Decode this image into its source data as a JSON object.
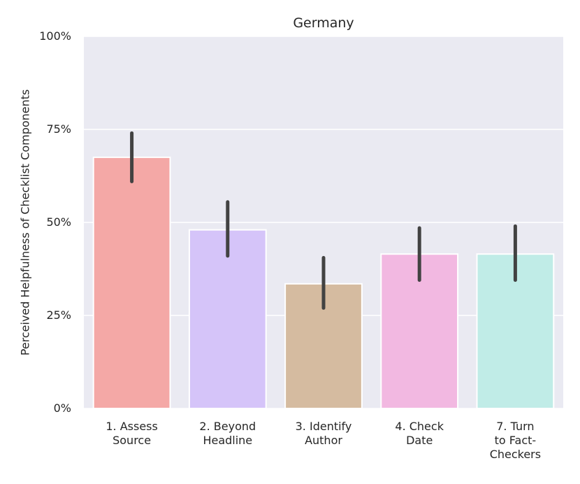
{
  "chart_data": {
    "type": "bar",
    "title": "Germany",
    "xlabel": "",
    "ylabel": "Perceived Helpfulness of Checklist Components",
    "ylim": [
      0,
      100
    ],
    "yticks": [
      "0%",
      "25%",
      "50%",
      "75%",
      "100%"
    ],
    "ytick_values": [
      0,
      25,
      50,
      75,
      100
    ],
    "grid": true,
    "categories": [
      [
        "1. Assess",
        "Source"
      ],
      [
        "2. Beyond",
        "Headline"
      ],
      [
        "3. Identify",
        "Author"
      ],
      [
        "4. Check",
        "Date"
      ],
      [
        "7. Turn",
        "to Fact-",
        "Checkers"
      ]
    ],
    "values": [
      67.5,
      48,
      33.5,
      41.5,
      41.5
    ],
    "error_low": [
      61,
      41,
      27,
      34.5,
      34.5
    ],
    "error_high": [
      74,
      55.5,
      40.5,
      48.5,
      49
    ],
    "colors": [
      "#f4a8a6",
      "#d5c4f9",
      "#d5bba0",
      "#f2b8e1",
      "#c0ece7"
    ],
    "plot_background": "#eaeaf2",
    "error_color": "#424242"
  }
}
